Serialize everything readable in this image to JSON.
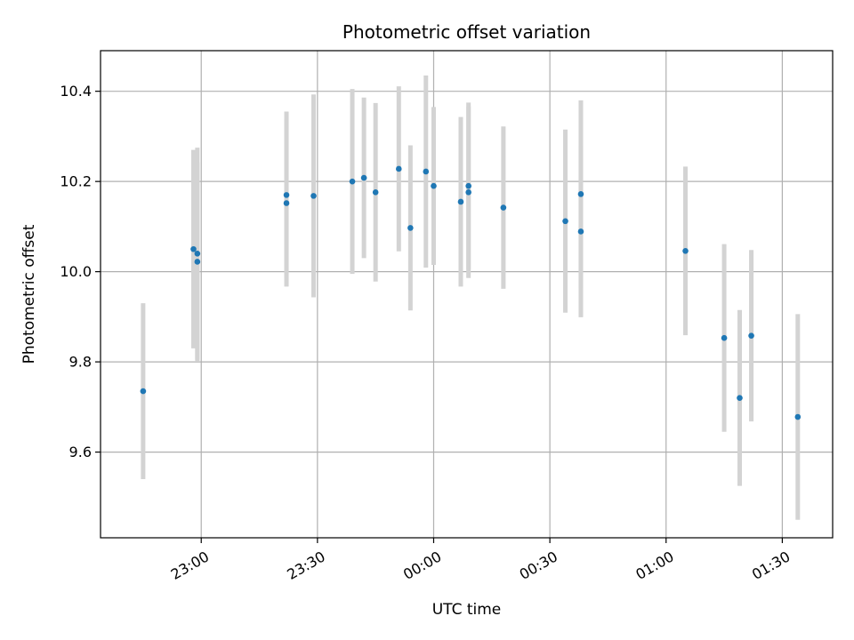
{
  "chart_data": {
    "type": "scatter",
    "title": "Photometric offset variation",
    "xlabel": "UTC time",
    "ylabel": "Photometric offset",
    "x_ticks": [
      "23:00",
      "23:30",
      "00:00",
      "00:30",
      "01:00",
      "01:30"
    ],
    "y_ticks": [
      "9.6",
      "9.8",
      "10.0",
      "10.2",
      "10.4"
    ],
    "xlim": [
      "22:34",
      "01:43"
    ],
    "ylim": [
      9.41,
      10.49
    ],
    "grid": true,
    "colors": {
      "point": "#1f77b4",
      "errorbar": "#d3d3d3",
      "grid": "#b0b0b0"
    },
    "points": [
      {
        "x": "22:45",
        "y": 9.735,
        "err": 0.195
      },
      {
        "x": "22:58",
        "y": 10.05,
        "err": 0.22
      },
      {
        "x": "22:59",
        "y": 10.04,
        "err": 0.235
      },
      {
        "x": "22:59",
        "y": 10.022,
        "err": 0.22
      },
      {
        "x": "23:22",
        "y": 10.17,
        "err": 0.185
      },
      {
        "x": "23:22",
        "y": 10.152,
        "err": 0.185
      },
      {
        "x": "23:29",
        "y": 10.168,
        "err": 0.225
      },
      {
        "x": "23:39",
        "y": 10.2,
        "err": 0.205
      },
      {
        "x": "23:42",
        "y": 10.208,
        "err": 0.178
      },
      {
        "x": "23:45",
        "y": 10.176,
        "err": 0.198
      },
      {
        "x": "23:51",
        "y": 10.228,
        "err": 0.183
      },
      {
        "x": "23:54",
        "y": 10.097,
        "err": 0.183
      },
      {
        "x": "23:58",
        "y": 10.222,
        "err": 0.213
      },
      {
        "x": "00:00",
        "y": 10.19,
        "err": 0.175
      },
      {
        "x": "00:07",
        "y": 10.155,
        "err": 0.188
      },
      {
        "x": "00:09",
        "y": 10.19,
        "err": 0.185
      },
      {
        "x": "00:09",
        "y": 10.176,
        "err": 0.19
      },
      {
        "x": "00:18",
        "y": 10.142,
        "err": 0.18
      },
      {
        "x": "00:34",
        "y": 10.112,
        "err": 0.203
      },
      {
        "x": "00:38",
        "y": 10.089,
        "err": 0.19
      },
      {
        "x": "00:38",
        "y": 10.172,
        "err": 0.208
      },
      {
        "x": "01:05",
        "y": 10.046,
        "err": 0.187
      },
      {
        "x": "01:15",
        "y": 9.853,
        "err": 0.208
      },
      {
        "x": "01:19",
        "y": 9.72,
        "err": 0.195
      },
      {
        "x": "01:22",
        "y": 9.858,
        "err": 0.19
      },
      {
        "x": "01:34",
        "y": 9.678,
        "err": 0.228
      }
    ]
  }
}
